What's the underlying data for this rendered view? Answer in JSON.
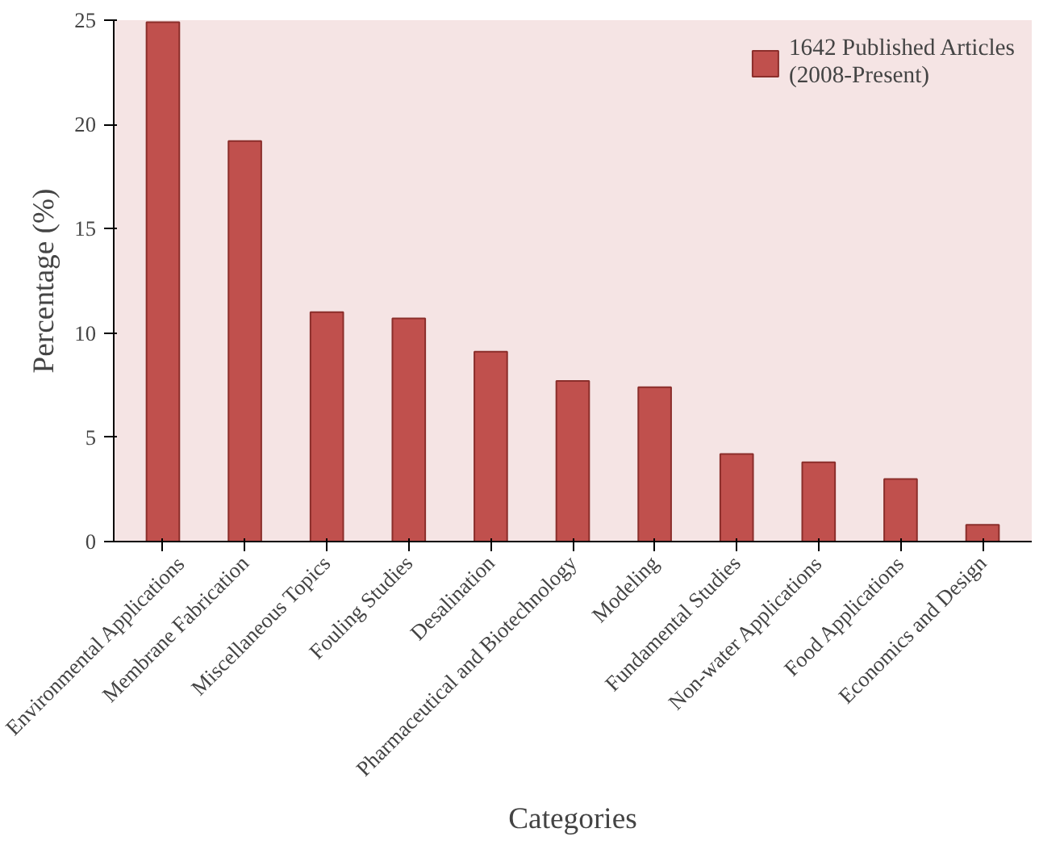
{
  "chart_data": {
    "type": "bar",
    "xlabel": "Categories",
    "ylabel": "Percentage (%)",
    "categories": [
      "Environmental Applications",
      "Membrane Fabrication",
      "Miscellaneous Topics",
      "Fouling Studies",
      "Desalination",
      "Pharmaceutical and Biotechnology",
      "Modeling",
      "Fundamental Studies",
      "Non-water Applications",
      "Food Applications",
      "Economics and Design"
    ],
    "series": [
      {
        "name": "1642 Published Articles\n(2008-Present)",
        "color": "#c0504d",
        "values": [
          24.9,
          19.2,
          11,
          10.7,
          9.1,
          7.7,
          7.4,
          4.2,
          3.8,
          3.0,
          0.8
        ]
      }
    ],
    "ylim": [
      0,
      25
    ],
    "yticks": [
      0,
      5,
      10,
      15,
      20,
      25
    ],
    "grid": false,
    "legend": "top right"
  }
}
